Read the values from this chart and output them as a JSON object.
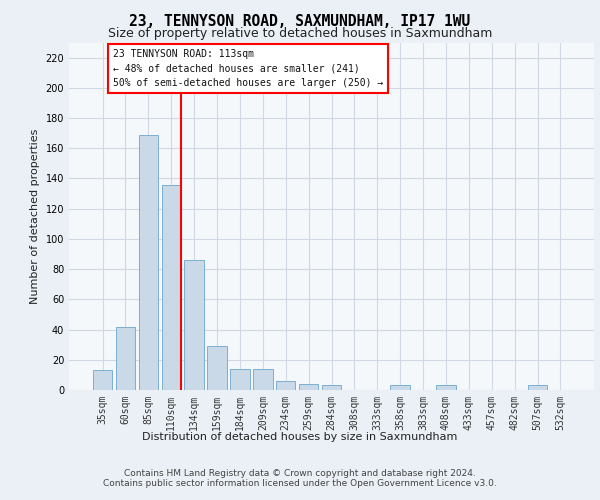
{
  "title": "23, TENNYSON ROAD, SAXMUNDHAM, IP17 1WU",
  "subtitle": "Size of property relative to detached houses in Saxmundham",
  "xlabel": "Distribution of detached houses by size in Saxmundham",
  "ylabel": "Number of detached properties",
  "footer_line1": "Contains HM Land Registry data © Crown copyright and database right 2024.",
  "footer_line2": "Contains public sector information licensed under the Open Government Licence v3.0.",
  "categories": [
    "35sqm",
    "60sqm",
    "85sqm",
    "110sqm",
    "134sqm",
    "159sqm",
    "184sqm",
    "209sqm",
    "234sqm",
    "259sqm",
    "284sqm",
    "308sqm",
    "333sqm",
    "358sqm",
    "383sqm",
    "408sqm",
    "433sqm",
    "457sqm",
    "482sqm",
    "507sqm",
    "532sqm"
  ],
  "values": [
    13,
    42,
    169,
    136,
    86,
    29,
    14,
    14,
    6,
    4,
    3,
    0,
    0,
    3,
    0,
    3,
    0,
    0,
    0,
    3,
    0
  ],
  "bar_color": "#c9d9e8",
  "bar_edge_color": "#7bafd4",
  "red_line_x": 3,
  "annotation_text": "23 TENNYSON ROAD: 113sqm\n← 48% of detached houses are smaller (241)\n50% of semi-detached houses are larger (250) →",
  "ylim": [
    0,
    230
  ],
  "yticks": [
    0,
    20,
    40,
    60,
    80,
    100,
    120,
    140,
    160,
    180,
    200,
    220
  ],
  "grid_color": "#d0d8e4",
  "background_color": "#eaf0f6",
  "plot_bg_color": "#f4f8fb",
  "title_fontsize": 10.5,
  "subtitle_fontsize": 9,
  "axis_label_fontsize": 8,
  "tick_fontsize": 7,
  "annotation_fontsize": 7,
  "footer_fontsize": 6.5
}
